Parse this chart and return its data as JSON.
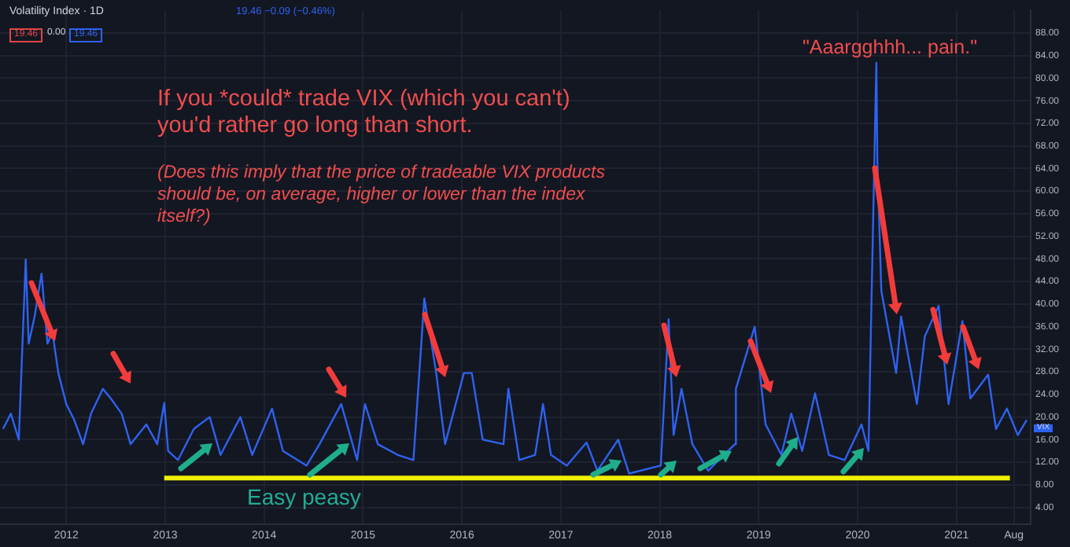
{
  "chart_data": {
    "type": "line",
    "title": "Volatility Index · 1D",
    "annotations": [
      "19.46 −0.09 (−0.46%)",
      "19.46",
      "0.00",
      "19.46",
      "If you *could* trade VIX (which you can't) you'd rather go long than short.",
      "(Does this imply that the price of tradeable VIX products should be, on average, higher or lower than the index itself?)",
      "\"Aaargghhh... pain.\"",
      "Easy peasy",
      "VIX"
    ],
    "series": [
      {
        "type": "line",
        "color": "#2e62f0",
        "x": [
          2011.36,
          2011.44,
          2011.52,
          2011.59,
          2011.62,
          2011.68,
          2011.75,
          2011.81,
          2011.86,
          2011.92,
          2012.0,
          2012.08,
          2012.17,
          2012.25,
          2012.37,
          2012.45,
          2012.56,
          2012.65,
          2012.81,
          2012.92,
          2012.99,
          2013.03,
          2013.13,
          2013.29,
          2013.45,
          2013.56,
          2013.76,
          2013.88,
          2014.08,
          2014.19,
          2014.43,
          2014.56,
          2014.78,
          2014.94,
          2015.02,
          2015.15,
          2015.35,
          2015.51,
          2015.62,
          2015.74,
          2015.83,
          2016.02,
          2016.1,
          2016.21,
          2016.42,
          2016.47,
          2016.58,
          2016.74,
          2016.82,
          2016.9,
          2017.06,
          2017.26,
          2017.37,
          2017.58,
          2017.69,
          2018.01,
          2018.09,
          2018.14,
          2018.22,
          2018.33,
          2018.49,
          2018.76,
          2018.77,
          2018.96,
          2019.07,
          2019.23,
          2019.33,
          2019.44,
          2019.57,
          2019.71,
          2019.87,
          2020.04,
          2020.11,
          2020.19,
          2020.2,
          2020.24,
          2020.39,
          2020.44,
          2020.6,
          2020.68,
          2020.82,
          2020.92,
          2021.06,
          2021.14,
          2021.32,
          2021.4,
          2021.51,
          2021.62,
          2021.71
        ],
        "values": [
          17.9,
          20.6,
          16,
          47.9,
          33,
          37.8,
          45.4,
          33,
          35,
          27.8,
          22.3,
          19.5,
          15.2,
          20.6,
          25,
          23.3,
          20.6,
          15.2,
          18.7,
          15.2,
          22.5,
          14,
          12.4,
          17.9,
          20,
          13.3,
          20,
          13.3,
          21.5,
          14,
          11.4,
          15.2,
          22.3,
          12.4,
          22.3,
          15.2,
          13.3,
          12.4,
          41,
          27.8,
          15.2,
          27.8,
          27.8,
          16,
          15.2,
          25,
          12.4,
          13.3,
          22.3,
          13.3,
          11.4,
          15.5,
          10.5,
          16,
          10,
          11.4,
          37.3,
          16.8,
          25,
          15.2,
          10.5,
          15.2,
          25,
          36,
          18.7,
          13.3,
          20.6,
          14,
          24.2,
          13.3,
          12.4,
          18.7,
          14,
          82.7,
          65.6,
          42.4,
          27.8,
          37.8,
          22.3,
          34.3,
          39.7,
          22.3,
          37,
          23.3,
          27.5,
          17.9,
          21.5,
          16.8,
          19.5
        ]
      },
      {
        "type": "line",
        "color": "#f0f000",
        "x": [
          2012.99,
          2021.54
        ],
        "values": [
          9.2,
          9.2
        ]
      }
    ],
    "xlim": [
      2011.33,
      2021.75
    ],
    "xticks": [
      2012,
      2013,
      2014,
      2015,
      2016,
      2017,
      2018,
      2019,
      2020,
      2021,
      {
        "value": 2021.58,
        "label": "Aug"
      }
    ],
    "ylim": [
      1,
      92
    ],
    "yticks": [
      {
        "value": 4,
        "label": "4.00"
      },
      {
        "value": 8,
        "label": "8.00"
      },
      {
        "value": 12,
        "label": "12.00"
      },
      {
        "value": 16,
        "label": "16.00"
      },
      {
        "value": 20,
        "label": "20.00"
      },
      {
        "value": 24,
        "label": "24.00"
      },
      {
        "value": 28,
        "label": "28.00"
      },
      {
        "value": 32,
        "label": "32.00"
      },
      {
        "value": 36,
        "label": "36.00"
      },
      {
        "value": 40,
        "label": "40.00"
      },
      {
        "value": 44,
        "label": "44.00"
      },
      {
        "value": 48,
        "label": "48.00"
      },
      {
        "value": 52,
        "label": "52.00"
      },
      {
        "value": 56,
        "label": "56.00"
      },
      {
        "value": 60,
        "label": "60.00"
      },
      {
        "value": 64,
        "label": "64.00"
      },
      {
        "value": 68,
        "label": "68.00"
      },
      {
        "value": 72,
        "label": "72.00"
      },
      {
        "value": 76,
        "label": "76.00"
      },
      {
        "value": 80,
        "label": "80.00"
      },
      {
        "value": 84,
        "label": "84.00"
      },
      {
        "value": 88,
        "label": "88.00"
      }
    ],
    "grid": true,
    "legend": false,
    "marker": "none"
  }
}
